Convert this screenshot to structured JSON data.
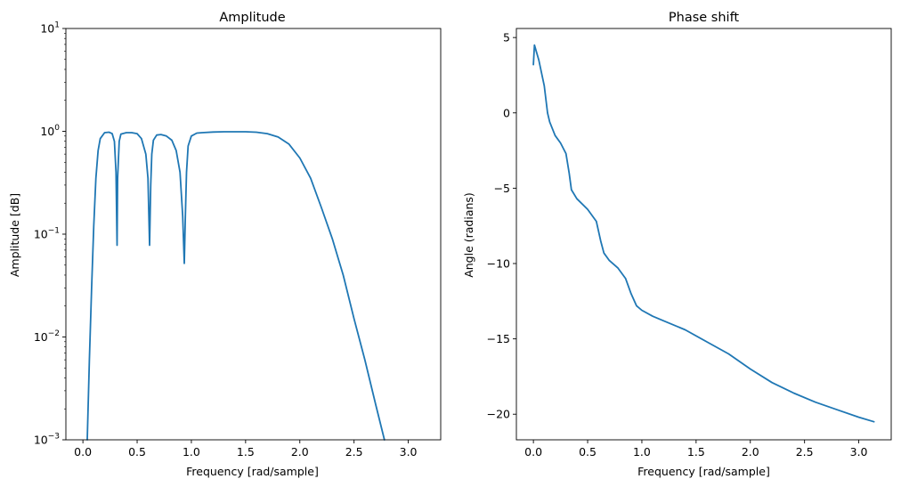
{
  "chart_data": [
    {
      "type": "line",
      "title": "Amplitude",
      "xlabel": "Frequency [rad/sample]",
      "ylabel": "Amplitude [dB]",
      "xlim": [
        -0.157,
        3.299
      ],
      "ylim": [
        0.001,
        10
      ],
      "yscale": "log",
      "grid": false,
      "line_color": "#1f77b4",
      "xticks": [
        0.0,
        0.5,
        1.0,
        1.5,
        2.0,
        2.5,
        3.0
      ],
      "xtick_labels": [
        "0.0",
        "0.5",
        "1.0",
        "1.5",
        "2.0",
        "2.5",
        "3.0"
      ],
      "yticks": [
        {
          "value": 0.001,
          "base": "10",
          "exp": "−3"
        },
        {
          "value": 0.01,
          "base": "10",
          "exp": "−2"
        },
        {
          "value": 0.1,
          "base": "10",
          "exp": "−1"
        },
        {
          "value": 1,
          "base": "10",
          "exp": "0"
        },
        {
          "value": 10,
          "base": "10",
          "exp": "1"
        }
      ],
      "series": [
        {
          "x": [
            0.04,
            0.06,
            0.08,
            0.1,
            0.12,
            0.14,
            0.16,
            0.2,
            0.24,
            0.27,
            0.29,
            0.305,
            0.315,
            0.32,
            0.335,
            0.35,
            0.4,
            0.45,
            0.5,
            0.54,
            0.58,
            0.6,
            0.615,
            0.625,
            0.635,
            0.65,
            0.68,
            0.72,
            0.77,
            0.82,
            0.86,
            0.895,
            0.92,
            0.935,
            0.945,
            0.955,
            0.97,
            1.0,
            1.05,
            1.1,
            1.2,
            1.3,
            1.4,
            1.5,
            1.6,
            1.7,
            1.8,
            1.9,
            2.0,
            2.1,
            2.2,
            2.3,
            2.4,
            2.5,
            2.6,
            2.7,
            2.78
          ],
          "y": [
            0.001,
            0.006,
            0.03,
            0.12,
            0.35,
            0.65,
            0.85,
            0.97,
            0.98,
            0.95,
            0.8,
            0.4,
            0.078,
            0.35,
            0.8,
            0.94,
            0.97,
            0.97,
            0.95,
            0.85,
            0.6,
            0.35,
            0.078,
            0.3,
            0.6,
            0.82,
            0.92,
            0.93,
            0.9,
            0.82,
            0.65,
            0.4,
            0.15,
            0.052,
            0.15,
            0.4,
            0.72,
            0.9,
            0.96,
            0.97,
            0.985,
            0.99,
            0.99,
            0.99,
            0.98,
            0.95,
            0.88,
            0.75,
            0.55,
            0.35,
            0.18,
            0.09,
            0.04,
            0.015,
            0.006,
            0.0022,
            0.001
          ]
        }
      ]
    },
    {
      "type": "line",
      "title": "Phase shift",
      "xlabel": "Frequency [rad/sample]",
      "ylabel": "Angle (radians)",
      "xlim": [
        -0.157,
        3.299
      ],
      "ylim": [
        -21.7,
        5.6
      ],
      "grid": false,
      "line_color": "#1f77b4",
      "xticks": [
        0.0,
        0.5,
        1.0,
        1.5,
        2.0,
        2.5,
        3.0
      ],
      "xtick_labels": [
        "0.0",
        "0.5",
        "1.0",
        "1.5",
        "2.0",
        "2.5",
        "3.0"
      ],
      "yticks": [
        5,
        0,
        -5,
        -10,
        -15,
        -20
      ],
      "ytick_labels": [
        "5",
        "0",
        "−5",
        "−10",
        "−15",
        "−20"
      ],
      "series": [
        {
          "x": [
            0.0,
            0.01,
            0.05,
            0.1,
            0.13,
            0.15,
            0.2,
            0.25,
            0.3,
            0.33,
            0.35,
            0.4,
            0.5,
            0.58,
            0.62,
            0.65,
            0.7,
            0.78,
            0.85,
            0.9,
            0.95,
            1.0,
            1.1,
            1.2,
            1.4,
            1.6,
            1.8,
            2.0,
            2.2,
            2.4,
            2.6,
            2.8,
            3.0,
            3.14
          ],
          "y": [
            3.2,
            4.5,
            3.5,
            1.8,
            0.0,
            -0.6,
            -1.5,
            -2.0,
            -2.7,
            -4.0,
            -5.1,
            -5.7,
            -6.4,
            -7.2,
            -8.5,
            -9.3,
            -9.8,
            -10.3,
            -11.0,
            -12.0,
            -12.8,
            -13.1,
            -13.5,
            -13.8,
            -14.4,
            -15.2,
            -16.0,
            -17.0,
            -17.9,
            -18.6,
            -19.2,
            -19.7,
            -20.2,
            -20.5
          ]
        }
      ]
    }
  ]
}
